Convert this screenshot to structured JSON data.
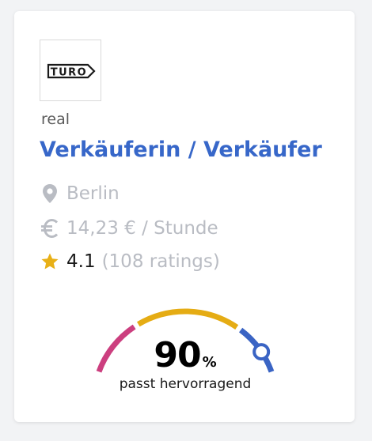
{
  "job_card": {
    "logo_text": "TURO",
    "company": "real",
    "title": "Verkäuferin / Verkäufer",
    "location": "Berlin",
    "salary": "14,23 € / Stunde",
    "rating": {
      "value": "4.1",
      "count_text": "(108 ratings)"
    },
    "match": {
      "percent_value": 90,
      "percent_number": "90",
      "percent_unit": "%",
      "label": "passt hervorragend"
    },
    "icons": {
      "location": "map-pin-icon",
      "salary": "euro-icon",
      "rating": "star-icon"
    },
    "colors": {
      "title": "#3767c9",
      "muted": "#b9bcc3",
      "star": "#e8b017",
      "gauge_low": "#cc3f7f",
      "gauge_mid": "#e5ac14",
      "gauge_high": "#3a64c4"
    }
  }
}
